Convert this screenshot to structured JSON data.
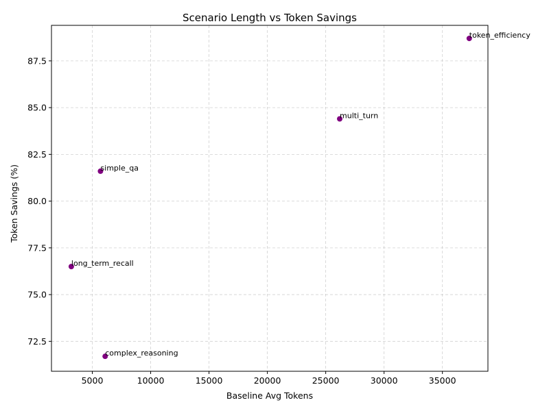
{
  "chart_data": {
    "type": "scatter",
    "title": "Scenario Length vs Token Savings",
    "xlabel": "Baseline Avg Tokens",
    "ylabel": "Token Savings (%)",
    "xlim": [
      1500,
      38900
    ],
    "ylim": [
      70.9,
      89.4
    ],
    "xticks": [
      5000,
      10000,
      15000,
      20000,
      25000,
      30000,
      35000
    ],
    "yticks": [
      72.5,
      75.0,
      77.5,
      80.0,
      82.5,
      85.0,
      87.5
    ],
    "grid": true,
    "marker_color": "#800080",
    "points": [
      {
        "label": "token_efficiency",
        "x": 37300,
        "y": 88.7
      },
      {
        "label": "multi_turn",
        "x": 26200,
        "y": 84.4
      },
      {
        "label": "simple_qa",
        "x": 5700,
        "y": 81.6
      },
      {
        "label": "long_term_recall",
        "x": 3200,
        "y": 76.5
      },
      {
        "label": "complex_reasoning",
        "x": 6100,
        "y": 71.7
      }
    ]
  }
}
